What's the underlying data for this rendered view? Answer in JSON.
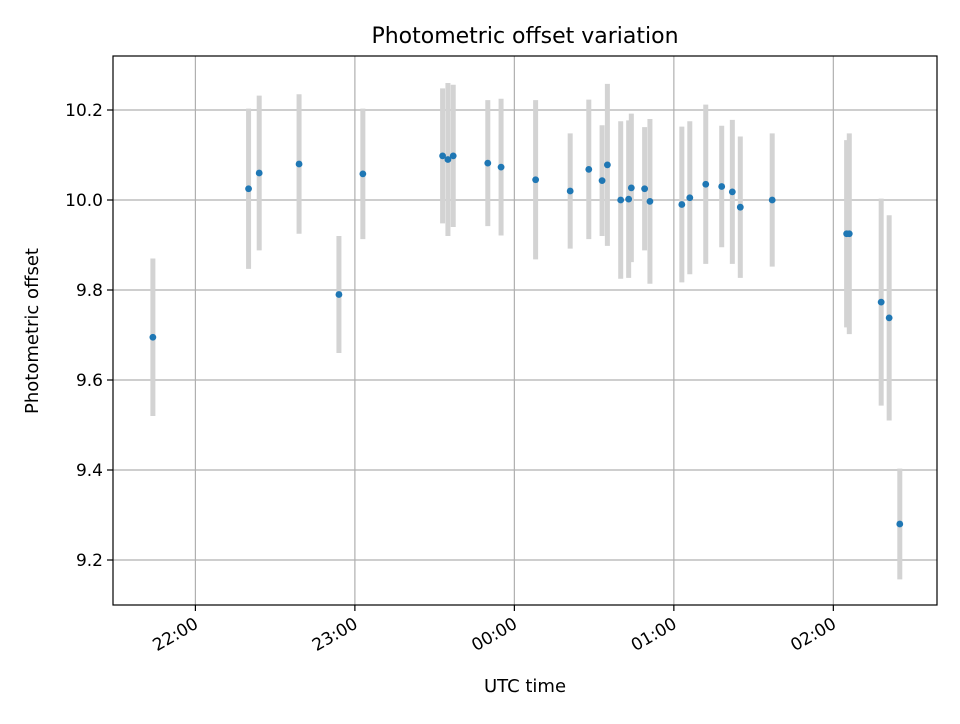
{
  "chart_data": {
    "type": "scatter",
    "title": "Photometric offset variation",
    "xlabel": "UTC time",
    "ylabel": "Photometric offset",
    "x_tick_labels": [
      "22:00",
      "23:00",
      "00:00",
      "01:00",
      "02:00"
    ],
    "y_tick_labels": [
      "9.2",
      "9.4",
      "9.6",
      "9.8",
      "10.0",
      "10.2"
    ],
    "xlim": [
      "21:29",
      "02:39"
    ],
    "ylim": [
      9.1,
      10.32
    ],
    "grid": true,
    "legend": "none",
    "colors": {
      "points": "#1f77b4",
      "errorbars": "#d3d3d3",
      "grid": "#b0b0b0"
    },
    "series": [
      {
        "points": [
          {
            "x": "21:44",
            "y": 9.695,
            "err": 0.175
          },
          {
            "x": "22:20",
            "y": 10.025,
            "err": 0.178
          },
          {
            "x": "22:24",
            "y": 10.06,
            "err": 0.172
          },
          {
            "x": "22:39",
            "y": 10.08,
            "err": 0.155
          },
          {
            "x": "22:54",
            "y": 9.79,
            "err": 0.13
          },
          {
            "x": "23:03",
            "y": 10.058,
            "err": 0.145
          },
          {
            "x": "23:33",
            "y": 10.098,
            "err": 0.15
          },
          {
            "x": "23:35",
            "y": 10.09,
            "err": 0.17
          },
          {
            "x": "23:37",
            "y": 10.098,
            "err": 0.158
          },
          {
            "x": "23:50",
            "y": 10.082,
            "err": 0.14
          },
          {
            "x": "23:55",
            "y": 10.073,
            "err": 0.152
          },
          {
            "x": "00:08",
            "y": 10.045,
            "err": 0.177
          },
          {
            "x": "00:21",
            "y": 10.02,
            "err": 0.128
          },
          {
            "x": "00:28",
            "y": 10.068,
            "err": 0.155
          },
          {
            "x": "00:33",
            "y": 10.043,
            "err": 0.123
          },
          {
            "x": "00:35",
            "y": 10.078,
            "err": 0.18
          },
          {
            "x": "00:40",
            "y": 10.0,
            "err": 0.175
          },
          {
            "x": "00:43",
            "y": 10.002,
            "err": 0.175
          },
          {
            "x": "00:44",
            "y": 10.027,
            "err": 0.165
          },
          {
            "x": "00:49",
            "y": 10.025,
            "err": 0.137
          },
          {
            "x": "00:51",
            "y": 9.997,
            "err": 0.183
          },
          {
            "x": "01:03",
            "y": 9.99,
            "err": 0.173
          },
          {
            "x": "01:06",
            "y": 10.005,
            "err": 0.17
          },
          {
            "x": "01:12",
            "y": 10.035,
            "err": 0.177
          },
          {
            "x": "01:18",
            "y": 10.03,
            "err": 0.135
          },
          {
            "x": "01:22",
            "y": 10.018,
            "err": 0.16
          },
          {
            "x": "01:25",
            "y": 9.984,
            "err": 0.157
          },
          {
            "x": "01:37",
            "y": 10.0,
            "err": 0.148
          },
          {
            "x": "02:05",
            "y": 9.925,
            "err": 0.208
          },
          {
            "x": "02:06",
            "y": 9.925,
            "err": 0.223
          },
          {
            "x": "02:18",
            "y": 9.773,
            "err": 0.23
          },
          {
            "x": "02:21",
            "y": 9.738,
            "err": 0.228
          },
          {
            "x": "02:25",
            "y": 9.28,
            "err": 0.123
          }
        ]
      }
    ]
  }
}
